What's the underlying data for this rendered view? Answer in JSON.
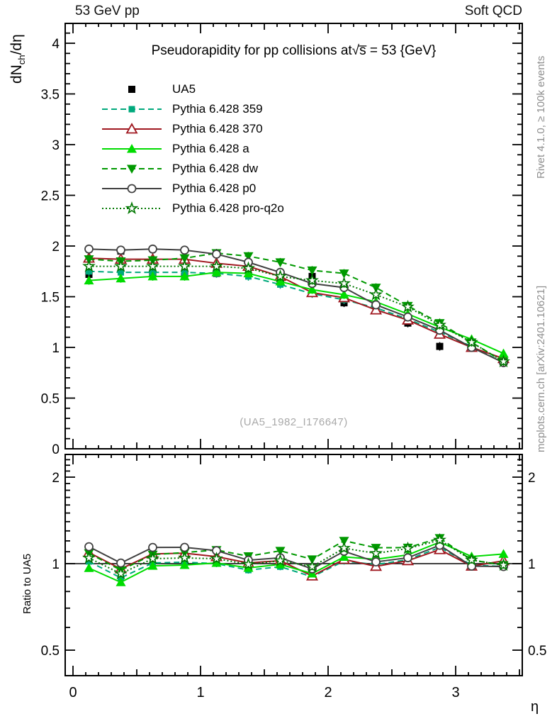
{
  "header": {
    "left": "53 GeV pp",
    "right": "Soft QCD"
  },
  "plot": {
    "title": "Pseudorapidity for pp collisions at√s̅ = 53 {GeV}",
    "watermark": "(UA5_1982_I176647)",
    "xlabel": "η",
    "ylabel_main": {
      "pre": "dN",
      "sub": "ch",
      "post": "/dη"
    },
    "ylabel_ratio": "Ratio to UA5"
  },
  "credits": {
    "top": "Rivet 4.1.0, ≥ 100k events",
    "bottom": "mcplots.cern.ch [arXiv:2401.10621]"
  },
  "chart_data": {
    "type": "line",
    "panels": [
      "main",
      "ratio"
    ],
    "x": [
      0.125,
      0.375,
      0.625,
      0.875,
      1.125,
      1.375,
      1.625,
      1.875,
      2.125,
      2.375,
      2.625,
      2.875,
      3.125,
      3.375
    ],
    "xlim": [
      -0.06,
      3.52
    ],
    "xticks": [
      0,
      1,
      2,
      3
    ],
    "xlabel": "η",
    "main": {
      "ylabel": "dN_ch/dη",
      "ylim": [
        0,
        4.2
      ],
      "yticks": [
        0,
        0.5,
        1,
        1.5,
        2,
        2.5,
        3,
        3.5,
        4
      ],
      "ytick_labels": [
        "0",
        "0.5",
        "1",
        "1.5",
        "2",
        "2.5",
        "3",
        "3.5",
        "4"
      ]
    },
    "ratio": {
      "ylabel": "Ratio to UA5",
      "scale": "log",
      "ylim": [
        0.41,
        2.41
      ],
      "yticks": [
        0.5,
        1,
        2
      ],
      "ytick_labels": [
        "0.5",
        "1",
        "2"
      ],
      "reference_line": 1,
      "definition": "series value / UA5 value"
    },
    "series": [
      {
        "name": "UA5",
        "role": "data",
        "color": "#000000",
        "marker": "square-filled",
        "line": "none",
        "values": [
          1.72,
          1.95,
          1.73,
          1.72,
          1.73,
          1.79,
          1.66,
          1.7,
          1.44,
          1.4,
          1.24,
          1.01,
          1.02,
          0.87
        ]
      },
      {
        "name": "Pythia 6.428 359",
        "role": "mc",
        "color": "#00a97c",
        "marker": "square-filled",
        "line": "dashed",
        "values": [
          1.75,
          1.74,
          1.74,
          1.74,
          1.73,
          1.7,
          1.62,
          1.53,
          1.47,
          1.39,
          1.28,
          1.15,
          1.01,
          0.85
        ]
      },
      {
        "name": "Pythia 6.428 370",
        "role": "mc",
        "color": "#a01820",
        "marker": "triangle-open",
        "line": "solid",
        "values": [
          1.88,
          1.87,
          1.87,
          1.87,
          1.83,
          1.8,
          1.7,
          1.54,
          1.49,
          1.37,
          1.27,
          1.13,
          1.0,
          0.89
        ]
      },
      {
        "name": "Pythia 6.428 a",
        "role": "mc",
        "color": "#00dc00",
        "marker": "triangle-filled",
        "line": "solid",
        "values": [
          1.66,
          1.68,
          1.7,
          1.7,
          1.74,
          1.73,
          1.65,
          1.57,
          1.52,
          1.45,
          1.33,
          1.2,
          1.08,
          0.94
        ]
      },
      {
        "name": "Pythia 6.428 dw",
        "role": "mc",
        "color": "#009900",
        "marker": "triangle-down-filled",
        "line": "dashed",
        "values": [
          1.87,
          1.85,
          1.86,
          1.88,
          1.93,
          1.9,
          1.84,
          1.76,
          1.73,
          1.59,
          1.41,
          1.24,
          1.05,
          0.86
        ]
      },
      {
        "name": "Pythia 6.428 p0",
        "role": "mc",
        "color": "#404040",
        "marker": "circle-open",
        "line": "solid",
        "values": [
          1.97,
          1.96,
          1.97,
          1.96,
          1.92,
          1.84,
          1.74,
          1.63,
          1.59,
          1.42,
          1.3,
          1.17,
          1.0,
          0.85
        ]
      },
      {
        "name": "Pythia 6.428 pro-q2o",
        "role": "mc",
        "color": "#007700",
        "marker": "star-open",
        "line": "dotted",
        "values": [
          1.8,
          1.8,
          1.8,
          1.8,
          1.8,
          1.78,
          1.7,
          1.66,
          1.63,
          1.52,
          1.4,
          1.22,
          1.05,
          0.86
        ]
      }
    ]
  }
}
